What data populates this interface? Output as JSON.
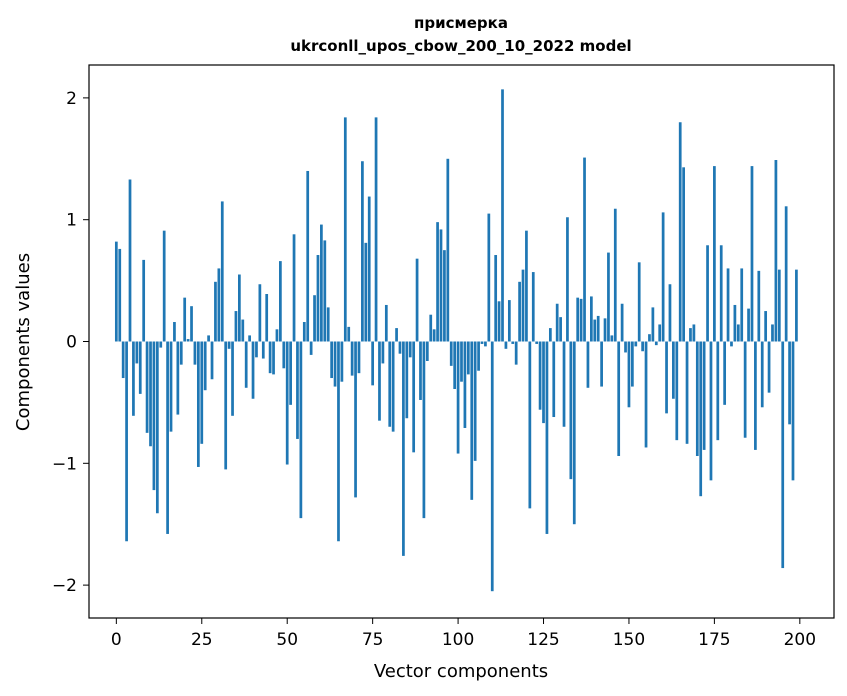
{
  "chart_data": {
    "type": "bar",
    "title_line1": "присмерка",
    "title_line2": "ukrconll_upos_cbow_200_10_2022 model",
    "xlabel": "Vector components",
    "ylabel": "Components values",
    "xlim": [
      -8,
      210
    ],
    "ylim": [
      -2.27,
      2.27
    ],
    "xticks": [
      0,
      25,
      50,
      75,
      100,
      125,
      150,
      175,
      200
    ],
    "yticks": [
      -2,
      -1,
      0,
      1,
      2
    ],
    "ytick_labels": [
      "−2",
      "−1",
      "0",
      "1",
      "2"
    ],
    "bar_color": "#1f77b4",
    "grid": false,
    "values": [
      0.82,
      0.76,
      -0.3,
      -1.64,
      1.33,
      -0.61,
      -0.18,
      -0.43,
      0.67,
      -0.75,
      -0.86,
      -1.22,
      -1.41,
      -0.05,
      0.91,
      -1.58,
      -0.74,
      0.16,
      -0.6,
      -0.19,
      0.36,
      0.02,
      0.29,
      -0.19,
      -1.03,
      -0.84,
      -0.4,
      0.05,
      -0.31,
      0.49,
      0.6,
      1.15,
      -1.05,
      -0.06,
      -0.61,
      0.25,
      0.55,
      0.18,
      -0.38,
      0.05,
      -0.47,
      -0.13,
      0.47,
      -0.14,
      0.39,
      -0.26,
      -0.27,
      0.1,
      0.66,
      -0.22,
      -1.01,
      -0.52,
      0.88,
      -0.8,
      -1.45,
      0.16,
      1.4,
      -0.11,
      0.38,
      0.71,
      0.96,
      0.83,
      0.28,
      -0.3,
      -0.37,
      -1.64,
      -0.33,
      1.84,
      0.12,
      -0.28,
      -1.28,
      -0.26,
      1.48,
      0.81,
      1.19,
      -0.36,
      1.84,
      -0.65,
      -0.18,
      0.3,
      -0.7,
      -0.74,
      0.11,
      -0.1,
      -1.76,
      -0.63,
      -0.13,
      -0.91,
      0.68,
      -0.48,
      -1.45,
      -0.16,
      0.22,
      0.1,
      0.98,
      0.92,
      0.75,
      1.5,
      -0.2,
      -0.39,
      -0.92,
      -0.33,
      -0.71,
      -0.27,
      -1.3,
      -0.98,
      -0.24,
      -0.02,
      -0.04,
      1.05,
      -2.05,
      0.71,
      0.33,
      2.07,
      -0.06,
      0.34,
      -0.02,
      -0.19,
      0.49,
      0.59,
      0.91,
      -1.37,
      0.57,
      -0.02,
      -0.56,
      -0.67,
      -1.58,
      0.11,
      -0.62,
      0.31,
      0.2,
      -0.7,
      1.02,
      -1.13,
      -1.5,
      0.36,
      0.35,
      1.51,
      -0.38,
      0.37,
      0.18,
      0.21,
      -0.37,
      0.19,
      0.73,
      0.05,
      1.09,
      -0.94,
      0.31,
      -0.09,
      -0.54,
      -0.37,
      -0.04,
      0.65,
      -0.08,
      -0.87,
      0.06,
      0.28,
      -0.03,
      0.14,
      1.06,
      -0.59,
      0.47,
      -0.47,
      -0.81,
      1.8,
      1.43,
      -0.84,
      0.11,
      0.14,
      -0.94,
      -1.27,
      -0.89,
      0.79,
      -1.14,
      1.44,
      -0.81,
      0.79,
      -0.52,
      0.6,
      -0.04,
      0.3,
      0.14,
      0.6,
      -0.79,
      0.27,
      1.44,
      -0.89,
      0.58,
      -0.54,
      0.25,
      -0.42,
      0.14,
      1.49,
      0.59,
      -1.86,
      1.11,
      -0.68,
      -1.14,
      0.59
    ]
  }
}
